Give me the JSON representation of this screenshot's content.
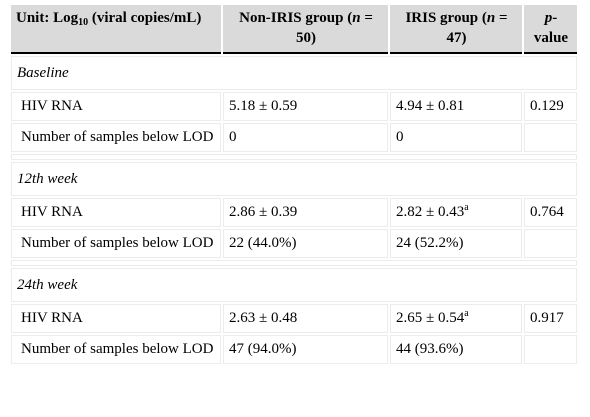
{
  "header": {
    "unit_prefix": "Unit: Log",
    "unit_sub": "10",
    "unit_suffix": " (viral copies/mL)",
    "non_iris_prefix": "Non-IRIS group (",
    "non_iris_n": "n",
    "non_iris_suffix": " = 50)",
    "iris_prefix": "IRIS group (",
    "iris_n": "n",
    "iris_suffix": " = 47)",
    "pvalue_p": "p",
    "pvalue_suffix": "-value"
  },
  "sections": [
    {
      "title": "Baseline",
      "rows": [
        {
          "label": "HIV RNA",
          "non_iris": "5.18 ± 0.59",
          "iris": "4.94 ± 0.81",
          "iris_sup": "",
          "p": "0.129"
        },
        {
          "label": "Number of samples below LOD",
          "non_iris": "0",
          "iris": "0",
          "iris_sup": "",
          "p": ""
        }
      ]
    },
    {
      "title": "12th week",
      "rows": [
        {
          "label": "HIV RNA",
          "non_iris": "2.86 ± 0.39",
          "iris": "2.82 ± 0.43",
          "iris_sup": "a",
          "p": "0.764"
        },
        {
          "label": "Number of samples below LOD",
          "non_iris": "22 (44.0%)",
          "iris": "24 (52.2%)",
          "iris_sup": "",
          "p": ""
        }
      ]
    },
    {
      "title": "24th week",
      "rows": [
        {
          "label": "HIV RNA",
          "non_iris": "2.63 ± 0.48",
          "iris": "2.65 ± 0.54",
          "iris_sup": "a",
          "p": "0.917"
        },
        {
          "label": "Number of samples below LOD",
          "non_iris": "47 (94.0%)",
          "iris": "44 (93.6%)",
          "iris_sup": "",
          "p": ""
        }
      ]
    }
  ]
}
